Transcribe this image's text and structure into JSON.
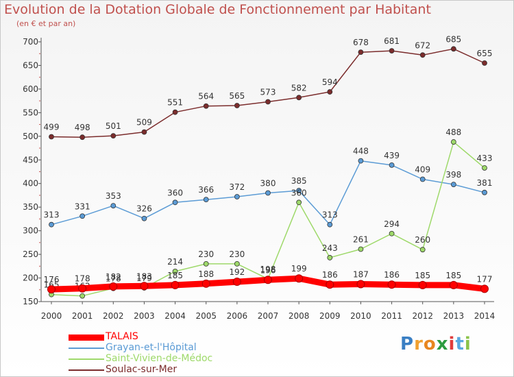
{
  "title": "Evolution de la Dotation Globale de Fonctionnement par Habitant",
  "subtitle": "(en € et par an)",
  "logo": {
    "letters": [
      "P",
      "r",
      "o",
      "x",
      "i",
      "t",
      "i"
    ],
    "colors": [
      "#3a7fc4",
      "#f0a030",
      "#e8861f",
      "#2c9b3f",
      "#e03c3c",
      "#5aa8e0",
      "#8bc34a"
    ]
  },
  "chart_data": {
    "type": "line",
    "title": "Evolution de la Dotation Globale de Fonctionnement par Habitant",
    "subtitle": "(en € et par an)",
    "xlabel": "",
    "ylabel": "",
    "x": [
      "2000",
      "2001",
      "2002",
      "2003",
      "2004",
      "2005",
      "2006",
      "2007",
      "2008",
      "2009",
      "2010",
      "2011",
      "2012",
      "2013",
      "2014"
    ],
    "yticks": [
      150,
      200,
      250,
      300,
      350,
      400,
      450,
      500,
      550,
      600,
      650,
      700
    ],
    "ylim": [
      150,
      700
    ],
    "grid": false,
    "legend_position": "bottom-left",
    "series": [
      {
        "name": "Soulac-sur-Mer",
        "color": "#7b2c2c",
        "values": [
          499,
          498,
          501,
          509,
          551,
          564,
          565,
          573,
          582,
          594,
          678,
          681,
          672,
          685,
          655
        ]
      },
      {
        "name": "Grayan-et-l'Hôpital",
        "color": "#5b9bd5",
        "values": [
          313,
          331,
          353,
          326,
          360,
          366,
          372,
          380,
          385,
          313,
          448,
          439,
          409,
          398,
          381
        ]
      },
      {
        "name": "Saint-Vivien-de-Médoc",
        "color": "#9ed96a",
        "values": [
          165,
          162,
          178,
          179,
          214,
          230,
          230,
          198,
          360,
          243,
          261,
          294,
          260,
          488,
          433
        ]
      },
      {
        "name": "TALAIS",
        "color": "#ff0000",
        "values": [
          176,
          178,
          182,
          183,
          185,
          188,
          192,
          196,
          199,
          186,
          187,
          186,
          185,
          185,
          177
        ]
      }
    ],
    "legend_order": [
      "TALAIS",
      "Grayan-et-l'Hôpital",
      "Saint-Vivien-de-Médoc",
      "Soulac-sur-Mer"
    ]
  }
}
